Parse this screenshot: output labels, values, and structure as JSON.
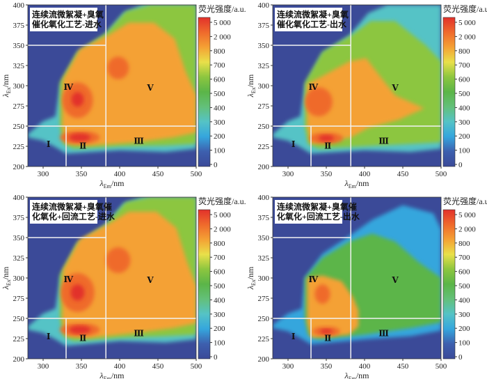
{
  "chart_data": {
    "type": "heatmap",
    "subtype": "EEM fluorescence contour",
    "xlabel": "λEm/nm",
    "xlabel_main": "λ",
    "xlabel_sub": "Em",
    "xlabel_unit": "/nm",
    "ylabel_main": "λ",
    "ylabel_sub": "Ex",
    "ylabel_unit": "/nm",
    "xlim": [
      280,
      500
    ],
    "ylim": [
      200,
      400
    ],
    "xticks": [
      300,
      350,
      400,
      450,
      500
    ],
    "yticks": [
      200,
      225,
      250,
      275,
      300,
      325,
      350,
      375,
      400
    ],
    "colorbar": {
      "label": "荧光强度/a.u.",
      "ticks": [
        "0",
        "100",
        "200",
        "300",
        "400",
        "500",
        "600",
        "700",
        "800",
        "2 000",
        "5 000"
      ],
      "colors": [
        "#3b4a98",
        "#3d5fae",
        "#35a6dd",
        "#55c3c6",
        "#63c07a",
        "#5bb548",
        "#8cc63f",
        "#e9e04a",
        "#f4a134",
        "#ef6a2c",
        "#e2312b"
      ]
    },
    "region_dividers": {
      "em": [
        330,
        382
      ],
      "ex": [
        250,
        350
      ]
    },
    "region_labels": [
      {
        "text": "Ⅰ",
        "em": 307,
        "ex": 224
      },
      {
        "text": "Ⅱ",
        "em": 352,
        "ex": 222
      },
      {
        "text": "Ⅲ",
        "em": 425,
        "ex": 228
      },
      {
        "text": "Ⅳ",
        "em": 333,
        "ex": 295
      },
      {
        "text": "Ⅴ",
        "em": 440,
        "ex": 294
      }
    ],
    "panels": [
      {
        "title_lines": [
          "连续流微絮凝+臭氧",
          "催化氧化工艺-进水"
        ],
        "contours": [
          {
            "level": 300,
            "points": [
              [
                280,
                240
              ],
              [
                300,
                256
              ],
              [
                316,
                262
              ],
              [
                322,
                300
              ],
              [
                345,
                340
              ],
              [
                380,
                362
              ],
              [
                405,
                390
              ],
              [
                430,
                400
              ],
              [
                500,
                400
              ],
              [
                500,
                222
              ],
              [
                460,
                218
              ],
              [
                400,
                220
              ],
              [
                330,
                216
              ],
              [
                316,
                224
              ],
              [
                300,
                232
              ],
              [
                280,
                236
              ]
            ]
          },
          {
            "level": 600,
            "points": [
              [
                322,
                304
              ],
              [
                345,
                342
              ],
              [
                382,
                365
              ],
              [
                408,
                392
              ],
              [
                440,
                400
              ],
              [
                500,
                400
              ],
              [
                500,
                228
              ],
              [
                460,
                226
              ],
              [
                400,
                225
              ],
              [
                340,
                222
              ],
              [
                326,
                228
              ],
              [
                322,
                250
              ]
            ]
          },
          {
            "level": 800,
            "points": [
              [
                326,
                308
              ],
              [
                348,
                345
              ],
              [
                384,
                362
              ],
              [
                412,
                378
              ],
              [
                445,
                378
              ],
              [
                472,
                358
              ],
              [
                486,
                318
              ],
              [
                500,
                288
              ],
              [
                500,
                242
              ],
              [
                470,
                236
              ],
              [
                420,
                230
              ],
              [
                360,
                226
              ],
              [
                330,
                228
              ],
              [
                325,
                250
              ]
            ]
          },
          {
            "level": 2000,
            "ellipses": [
              [
                345,
                282,
                20,
                22
              ],
              [
                398,
                322,
                14,
                14
              ],
              [
                348,
                236,
                26,
                8
              ]
            ]
          },
          {
            "level": 5000,
            "ellipses": [
              [
                348,
                236,
                14,
                5
              ],
              [
                345,
                283,
                8,
                9
              ]
            ]
          }
        ]
      },
      {
        "title_lines": [
          "连续流微絮凝+臭氧",
          "催化氧化工艺-出水"
        ],
        "contours": [
          {
            "level": 300,
            "points": [
              [
                280,
                240
              ],
              [
                300,
                256
              ],
              [
                316,
                262
              ],
              [
                322,
                300
              ],
              [
                345,
                340
              ],
              [
                380,
                362
              ],
              [
                405,
                390
              ],
              [
                430,
                400
              ],
              [
                500,
                400
              ],
              [
                500,
                222
              ],
              [
                460,
                218
              ],
              [
                400,
                220
              ],
              [
                330,
                216
              ],
              [
                316,
                224
              ],
              [
                300,
                232
              ],
              [
                280,
                236
              ]
            ]
          },
          {
            "level": 600,
            "points": [
              [
                322,
                304
              ],
              [
                345,
                342
              ],
              [
                382,
                362
              ],
              [
                408,
                380
              ],
              [
                440,
                380
              ],
              [
                480,
                350
              ],
              [
                500,
                330
              ],
              [
                500,
                230
              ],
              [
                460,
                228
              ],
              [
                400,
                225
              ],
              [
                340,
                222
              ],
              [
                326,
                228
              ],
              [
                322,
                250
              ]
            ]
          },
          {
            "level": 800,
            "points": [
              [
                325,
                302
              ],
              [
                345,
                312
              ],
              [
                380,
                330
              ],
              [
                402,
                334
              ],
              [
                420,
                312
              ],
              [
                440,
                288
              ],
              [
                478,
                272
              ],
              [
                445,
                258
              ],
              [
                405,
                248
              ],
              [
                382,
                236
              ],
              [
                330,
                228
              ],
              [
                325,
                250
              ]
            ]
          },
          {
            "level": 2000,
            "ellipses": [
              [
                340,
                280,
                18,
                18
              ],
              [
                350,
                235,
                22,
                7
              ]
            ]
          },
          {
            "level": 5000,
            "ellipses": [
              [
                350,
                235,
                10,
                4
              ]
            ]
          }
        ]
      },
      {
        "title_lines": [
          "连续流微絮凝+臭氧催",
          "化氧化+回流工艺-进水"
        ],
        "contours": [
          {
            "level": 300,
            "points": [
              [
                280,
                240
              ],
              [
                300,
                256
              ],
              [
                316,
                262
              ],
              [
                322,
                300
              ],
              [
                345,
                342
              ],
              [
                380,
                364
              ],
              [
                405,
                392
              ],
              [
                430,
                400
              ],
              [
                500,
                400
              ],
              [
                500,
                224
              ],
              [
                460,
                220
              ],
              [
                400,
                222
              ],
              [
                330,
                216
              ],
              [
                316,
                224
              ],
              [
                300,
                232
              ],
              [
                280,
                236
              ]
            ]
          },
          {
            "level": 600,
            "points": [
              [
                322,
                304
              ],
              [
                345,
                344
              ],
              [
                382,
                366
              ],
              [
                408,
                394
              ],
              [
                440,
                400
              ],
              [
                500,
                400
              ],
              [
                500,
                230
              ],
              [
                460,
                228
              ],
              [
                400,
                226
              ],
              [
                340,
                222
              ],
              [
                326,
                228
              ],
              [
                322,
                250
              ]
            ]
          },
          {
            "level": 800,
            "points": [
              [
                326,
                310
              ],
              [
                348,
                348
              ],
              [
                384,
                366
              ],
              [
                412,
                382
              ],
              [
                448,
                382
              ],
              [
                474,
                362
              ],
              [
                488,
                320
              ],
              [
                500,
                290
              ],
              [
                500,
                244
              ],
              [
                470,
                238
              ],
              [
                420,
                232
              ],
              [
                360,
                226
              ],
              [
                330,
                228
              ],
              [
                325,
                250
              ]
            ]
          },
          {
            "level": 2000,
            "ellipses": [
              [
                345,
                282,
                22,
                24
              ],
              [
                398,
                322,
                16,
                16
              ],
              [
                348,
                236,
                26,
                8
              ]
            ]
          },
          {
            "level": 5000,
            "ellipses": [
              [
                345,
                282,
                9,
                10
              ],
              [
                348,
                236,
                14,
                5
              ]
            ]
          }
        ]
      },
      {
        "title_lines": [
          "连续流微絮凝+臭氧催",
          "化氧化+回流工艺-出水"
        ],
        "contours": [
          {
            "level": 200,
            "points": [
              [
                280,
                242
              ],
              [
                300,
                256
              ],
              [
                318,
                262
              ],
              [
                322,
                300
              ],
              [
                345,
                330
              ],
              [
                380,
                352
              ],
              [
                410,
                372
              ],
              [
                450,
                390
              ],
              [
                490,
                380
              ],
              [
                500,
                360
              ],
              [
                500,
                235
              ],
              [
                460,
                228
              ],
              [
                400,
                224
              ],
              [
                330,
                218
              ],
              [
                316,
                226
              ],
              [
                300,
                234
              ],
              [
                280,
                238
              ]
            ]
          },
          {
            "level": 500,
            "points": [
              [
                322,
                300
              ],
              [
                345,
                325
              ],
              [
                380,
                345
              ],
              [
                410,
                355
              ],
              [
                440,
                345
              ],
              [
                470,
                320
              ],
              [
                500,
                300
              ],
              [
                500,
                245
              ],
              [
                460,
                238
              ],
              [
                400,
                230
              ],
              [
                340,
                224
              ],
              [
                326,
                230
              ],
              [
                322,
                250
              ]
            ]
          },
          {
            "level": 800,
            "points": [
              [
                325,
                300
              ],
              [
                345,
                303
              ],
              [
                370,
                296
              ],
              [
                385,
                276
              ],
              [
                392,
                260
              ],
              [
                392,
                240
              ],
              [
                380,
                230
              ],
              [
                330,
                226
              ],
              [
                325,
                245
              ]
            ]
          },
          {
            "level": 2000,
            "ellipses": [
              [
                345,
                280,
                10,
                12
              ],
              [
                350,
                234,
                18,
                6
              ]
            ]
          },
          {
            "level": 5000,
            "ellipses": [
              [
                350,
                234,
                8,
                3
              ]
            ]
          }
        ]
      }
    ]
  }
}
